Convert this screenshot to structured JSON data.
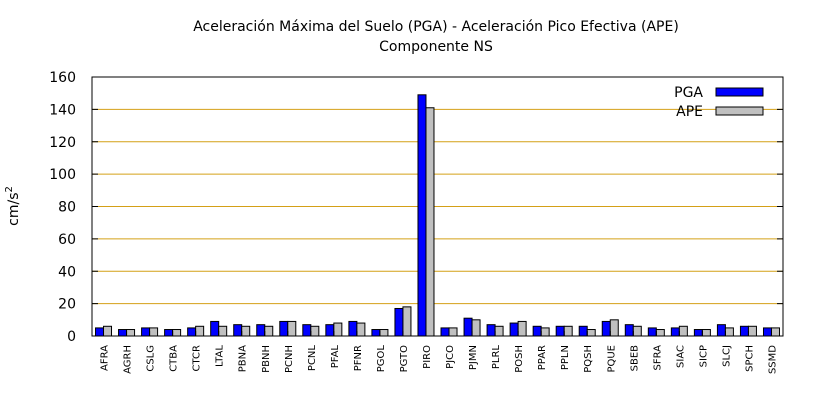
{
  "chart_data": {
    "type": "bar",
    "title": "Aceleración Máxima del Suelo (PGA) -  Aceleración Pico Efectiva (APE)",
    "subtitle": "Componente NS",
    "xlabel": "",
    "ylabel": "cm/s",
    "ylabel_superscript": "2",
    "ylim": [
      0,
      160
    ],
    "yticks": [
      0,
      20,
      40,
      60,
      80,
      100,
      120,
      140,
      160
    ],
    "grid": "horizontal",
    "legend_position": "top-right",
    "categories": [
      "AFRA",
      "AGRH",
      "CSLG",
      "CTBA",
      "CTCR",
      "LTAL",
      "PBNA",
      "PBNH",
      "PCNH",
      "PCNL",
      "PFAL",
      "PFNR",
      "PGOL",
      "PGTO",
      "PIRO",
      "PJCO",
      "PJMN",
      "PLRL",
      "POSH",
      "PPAR",
      "PPLN",
      "PQSH",
      "PQUE",
      "SBEB",
      "SFRA",
      "SIAC",
      "SICP",
      "SLCJ",
      "SPCH",
      "SSMD"
    ],
    "series": [
      {
        "name": "PGA",
        "color": "#0000ff",
        "values": [
          5,
          4,
          5,
          4,
          5,
          9,
          7,
          7,
          9,
          7,
          7,
          9,
          4,
          17,
          149,
          5,
          11,
          7,
          8,
          6,
          6,
          6,
          9,
          7,
          5,
          5,
          4,
          7,
          6,
          5
        ]
      },
      {
        "name": "APE",
        "color": "#c0c0c0",
        "values": [
          6,
          4,
          5,
          4,
          6,
          6,
          6,
          6,
          9,
          6,
          8,
          8,
          4,
          18,
          141,
          5,
          10,
          6,
          9,
          5,
          6,
          4,
          10,
          6,
          4,
          6,
          4,
          5,
          6,
          5
        ]
      }
    ],
    "colors": {
      "grid": "#d4a017",
      "axis": "#000000",
      "bar_outline": "#000000"
    }
  }
}
